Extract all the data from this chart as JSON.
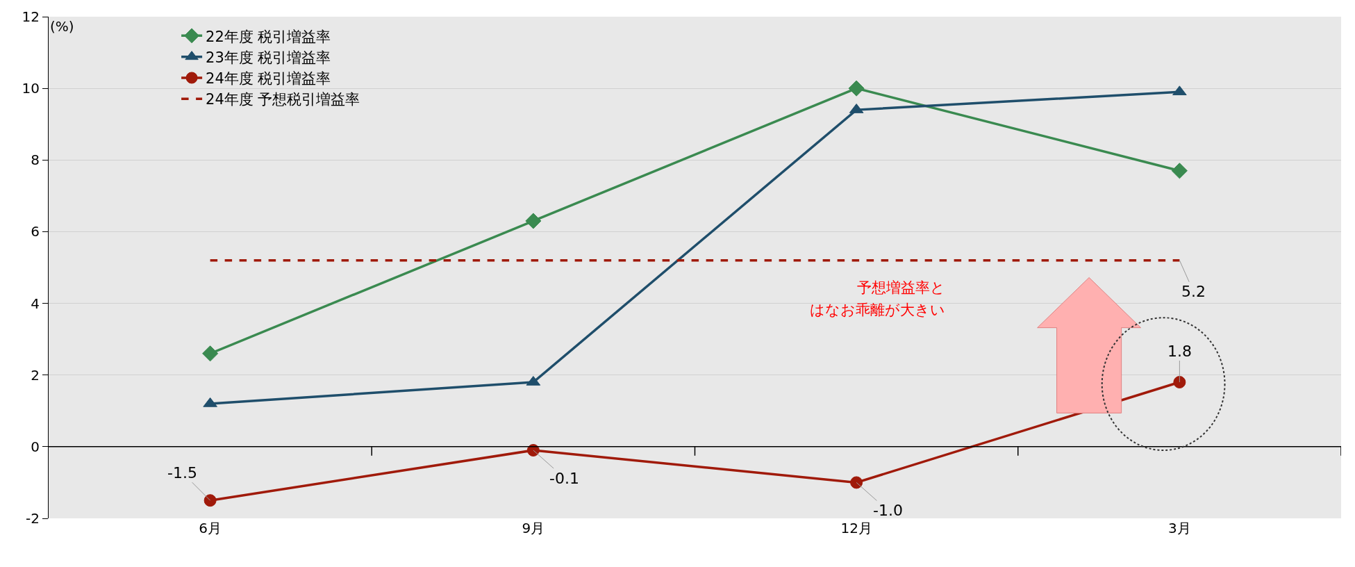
{
  "chart_data": {
    "type": "line",
    "ylabel": "(%)",
    "categories": [
      "6月",
      "9月",
      "12月",
      "3月"
    ],
    "series": [
      {
        "name": "22年度 税引増益率",
        "color": "#3a8a50",
        "values": [
          2.6,
          6.3,
          10.0,
          7.7
        ],
        "marker": "diamond",
        "line_style": "solid"
      },
      {
        "name": "23年度 税引増益率",
        "color": "#1f4e6b",
        "values": [
          1.2,
          1.8,
          9.4,
          9.9
        ],
        "marker": "triangle",
        "line_style": "solid"
      },
      {
        "name": "24年度 税引増益率",
        "color": "#a01a0a",
        "values": [
          -1.5,
          -0.1,
          -1.0,
          1.8
        ],
        "marker": "circle",
        "line_style": "solid",
        "value_labels": [
          "-1.5",
          "-0.1",
          "-1.0",
          "1.8"
        ]
      },
      {
        "name": "24年度 予想税引増益率",
        "color": "#a01a0a",
        "values": [
          5.2,
          5.2,
          5.2,
          5.2
        ],
        "marker": "none",
        "line_style": "dashed",
        "value_labels": [
          null,
          null,
          null,
          "5.2"
        ]
      }
    ],
    "annotations": [
      "予想増益率と",
      "はなお乖離が大きい"
    ],
    "ylim": [
      -2,
      12
    ],
    "yticks": [
      -2,
      0,
      2,
      4,
      6,
      8,
      10,
      12
    ],
    "grid": "y",
    "legend": "top left"
  }
}
